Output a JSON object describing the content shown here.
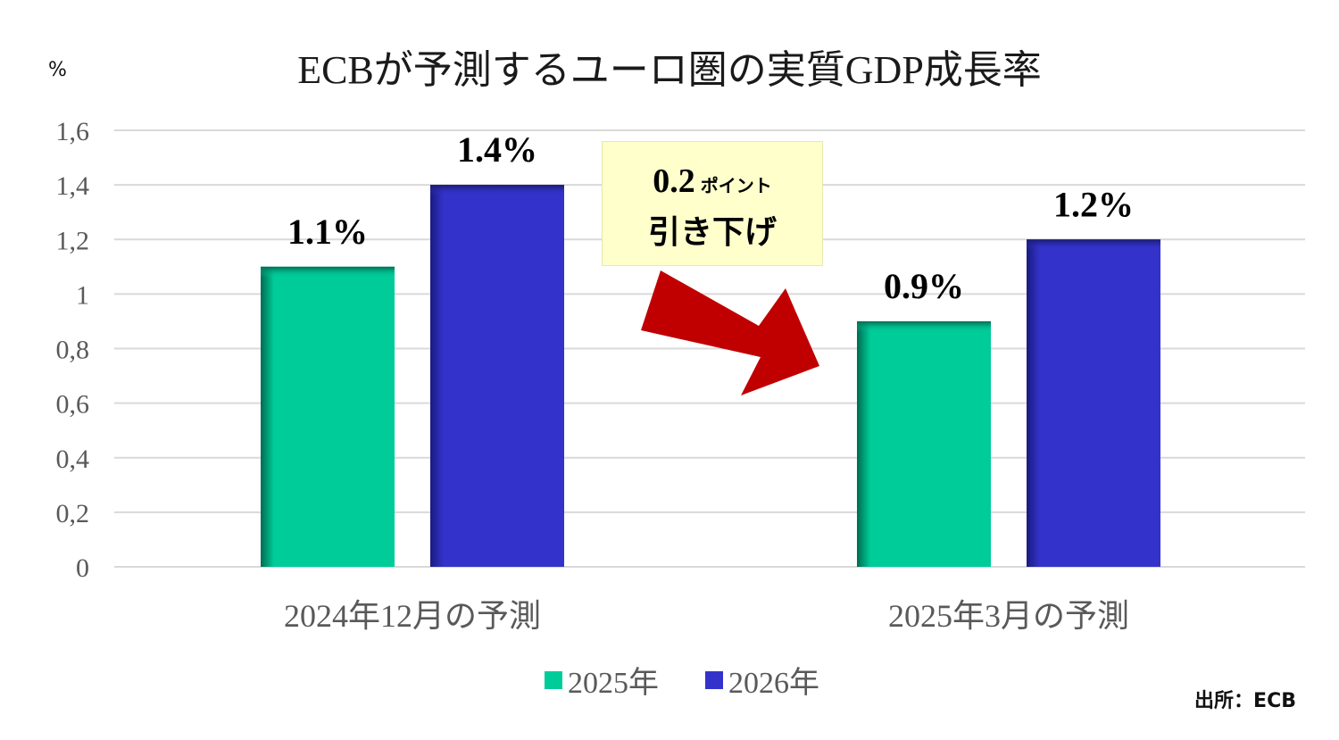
{
  "title": "ECBが予測するユーロ圏の実質GDP成長率",
  "unit_label": "%",
  "source": "出所：ECB",
  "callout": {
    "value": "0.2",
    "unit": "ポイント",
    "text": "引き下げ"
  },
  "colors": {
    "series_2025": "#00cc99",
    "series_2026": "#3333cc",
    "arrow": "#c00000",
    "callout_bg": "#ffffcc"
  },
  "chart_data": {
    "type": "bar",
    "categories": [
      "2024年12月の予測",
      "2025年3月の予測"
    ],
    "series": [
      {
        "name": "2025年",
        "values": [
          1.1,
          0.9
        ],
        "labels": [
          "1.1%",
          "0.9%"
        ]
      },
      {
        "name": "2026年",
        "values": [
          1.4,
          1.2
        ],
        "labels": [
          "1.4%",
          "1.2%"
        ]
      }
    ],
    "ylim": [
      0,
      1.6
    ],
    "yticks": [
      "0",
      "0,2",
      "0,4",
      "0,6",
      "0,8",
      "1",
      "1,2",
      "1,4",
      "1,6"
    ],
    "ytick_values": [
      0,
      0.2,
      0.4,
      0.6,
      0.8,
      1.0,
      1.2,
      1.4,
      1.6
    ],
    "grid": true,
    "legend_position": "bottom"
  }
}
